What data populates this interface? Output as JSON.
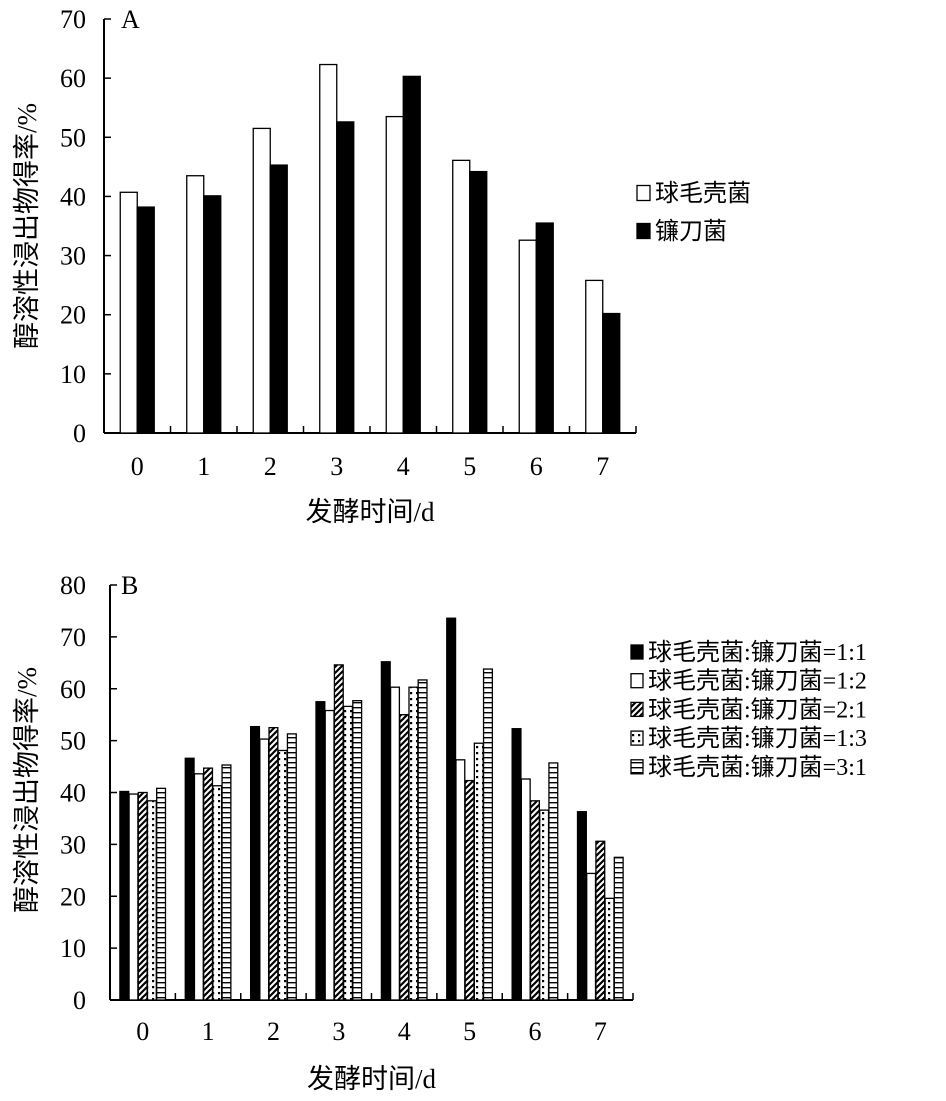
{
  "chart_data": [
    {
      "panel_label": "A",
      "type": "bar",
      "categories": [
        "0",
        "1",
        "2",
        "3",
        "4",
        "5",
        "6",
        "7"
      ],
      "xlabel": "发酵时间/d",
      "ylabel": "醇溶性浸出物得率/%",
      "ylim": [
        0,
        70
      ],
      "yticks": [
        "0",
        "10",
        "20",
        "30",
        "40",
        "50",
        "60",
        "70"
      ],
      "grid": false,
      "legend_position": "right",
      "series": [
        {
          "name": "球毛壳菌",
          "pattern": "white",
          "values": [
            40.7,
            43.5,
            51.5,
            62.3,
            53.5,
            46.1,
            32.6,
            25.8
          ]
        },
        {
          "name": "镰刀菌",
          "pattern": "black",
          "values": [
            38.2,
            40.1,
            45.3,
            52.6,
            60.3,
            44.2,
            35.5,
            20.2
          ]
        }
      ]
    },
    {
      "panel_label": "B",
      "type": "bar",
      "categories": [
        "0",
        "1",
        "2",
        "3",
        "4",
        "5",
        "6",
        "7"
      ],
      "xlabel": "发酵时间/d",
      "ylabel": "醇溶性浸出物得率/%",
      "ylim": [
        0,
        80
      ],
      "yticks": [
        "0",
        "10",
        "20",
        "30",
        "40",
        "50",
        "60",
        "70",
        "80"
      ],
      "grid": false,
      "legend_position": "right",
      "series": [
        {
          "name": "球毛壳菌:镰刀菌=1:1",
          "pattern": "black",
          "values": [
            40.2,
            46.6,
            52.7,
            57.5,
            65.2,
            73.6,
            52.3,
            36.3
          ]
        },
        {
          "name": "球毛壳菌:镰刀菌=1:2",
          "pattern": "white",
          "values": [
            39.7,
            43.6,
            50.3,
            55.8,
            60.3,
            46.3,
            42.6,
            24.4
          ]
        },
        {
          "name": "球毛壳菌:镰刀菌=2:1",
          "pattern": "diagonal",
          "values": [
            40.0,
            44.7,
            52.5,
            64.6,
            55.0,
            42.3,
            38.4,
            30.6
          ]
        },
        {
          "name": "球毛壳菌:镰刀菌=1:3",
          "pattern": "dots",
          "values": [
            38.4,
            41.3,
            48.1,
            56.6,
            60.3,
            49.5,
            36.6,
            19.6
          ]
        },
        {
          "name": "球毛壳菌:镰刀菌=3:1",
          "pattern": "hlines",
          "values": [
            40.8,
            45.3,
            51.3,
            57.7,
            61.7,
            63.8,
            45.7,
            27.5
          ]
        }
      ]
    }
  ]
}
